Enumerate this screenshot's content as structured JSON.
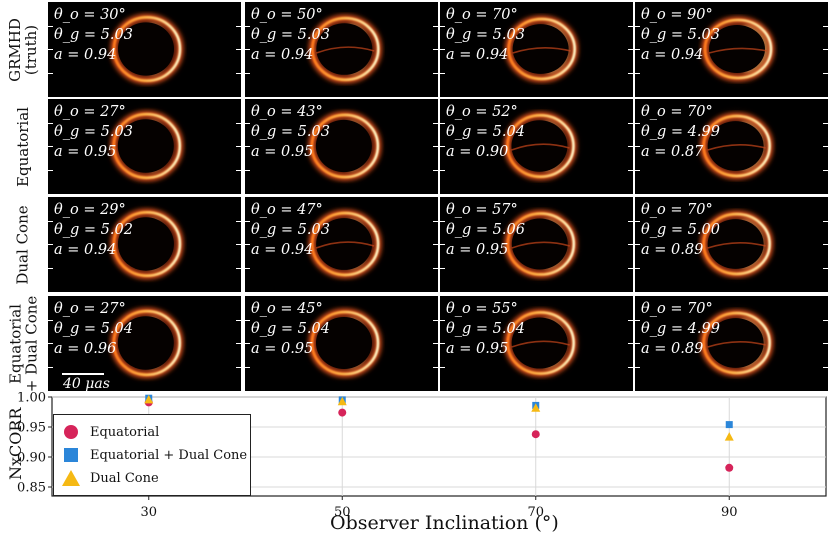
{
  "rows": [
    {
      "label": "GRMHD\n(truth)",
      "panels": [
        {
          "lines": [
            "θ_o = 30°",
            "θ_g = 5.03",
            "a = 0.94"
          ],
          "incl": 30
        },
        {
          "lines": [
            "θ_o = 50°",
            "θ_g = 5.03",
            "a = 0.94"
          ],
          "incl": 50
        },
        {
          "lines": [
            "θ_o = 70°",
            "θ_g = 5.03",
            "a = 0.94"
          ],
          "incl": 70
        },
        {
          "lines": [
            "θ_o = 90°",
            "θ_g = 5.03",
            "a = 0.94"
          ],
          "incl": 90
        }
      ]
    },
    {
      "label": "Equatorial",
      "panels": [
        {
          "lines": [
            "θ_o = 27°",
            "θ_g = 5.03",
            "a = 0.95"
          ],
          "incl": 27
        },
        {
          "lines": [
            "θ_o = 43°",
            "θ_g = 5.03",
            "a = 0.95"
          ],
          "incl": 43
        },
        {
          "lines": [
            "θ_o = 52°",
            "θ_g = 5.04",
            "a = 0.90"
          ],
          "incl": 52
        },
        {
          "lines": [
            "θ_o = 70°",
            "θ_g = 4.99",
            "a = 0.87"
          ],
          "incl": 70
        }
      ]
    },
    {
      "label": "Dual Cone",
      "panels": [
        {
          "lines": [
            "θ_o = 29°",
            "θ_g = 5.02",
            "a = 0.94"
          ],
          "incl": 29
        },
        {
          "lines": [
            "θ_o = 47°",
            "θ_g = 5.03",
            "a = 0.94"
          ],
          "incl": 47
        },
        {
          "lines": [
            "θ_o = 57°",
            "θ_g = 5.06",
            "a = 0.95"
          ],
          "incl": 57
        },
        {
          "lines": [
            "θ_o = 70°",
            "θ_g = 5.00",
            "a = 0.89"
          ],
          "incl": 70
        }
      ]
    },
    {
      "label": "Equatorial\n+ Dual Cone",
      "panels": [
        {
          "lines": [
            "θ_o = 27°",
            "θ_g = 5.04",
            "a = 0.96"
          ],
          "incl": 27
        },
        {
          "lines": [
            "θ_o = 45°",
            "θ_g = 5.04",
            "a = 0.95"
          ],
          "incl": 45
        },
        {
          "lines": [
            "θ_o = 55°",
            "θ_g = 5.04",
            "a = 0.95"
          ],
          "incl": 55
        },
        {
          "lines": [
            "θ_o = 70°",
            "θ_g = 4.99",
            "a = 0.89"
          ],
          "incl": 70
        }
      ]
    }
  ],
  "scalebar_label": "40 μas",
  "colors": {
    "equatorial": "#d6245a",
    "eq_dual": "#2b86d9",
    "dual": "#f5b914"
  },
  "chart_data": {
    "type": "scatter",
    "xlabel": "Observer Inclination (°)",
    "ylabel": "NxCORR",
    "xlim": [
      20,
      100
    ],
    "ylim": [
      0.835,
      1.0
    ],
    "xticks": [
      30,
      50,
      70,
      90
    ],
    "yticks": [
      "1.00",
      "0.95",
      "0.90",
      "0.85"
    ],
    "grid": true,
    "legend_position": "left",
    "series": [
      {
        "name": "Equatorial",
        "marker": "circle",
        "x": [
          30,
          50,
          70,
          90
        ],
        "y": [
          0.991,
          0.974,
          0.938,
          0.882
        ]
      },
      {
        "name": "Equatorial + Dual Cone",
        "marker": "square",
        "x": [
          30,
          50,
          70,
          90
        ],
        "y": [
          0.998,
          0.995,
          0.986,
          0.954
        ]
      },
      {
        "name": "Dual Cone",
        "marker": "triangle",
        "x": [
          30,
          50,
          70,
          90
        ],
        "y": [
          0.996,
          0.993,
          0.982,
          0.934
        ]
      }
    ]
  }
}
